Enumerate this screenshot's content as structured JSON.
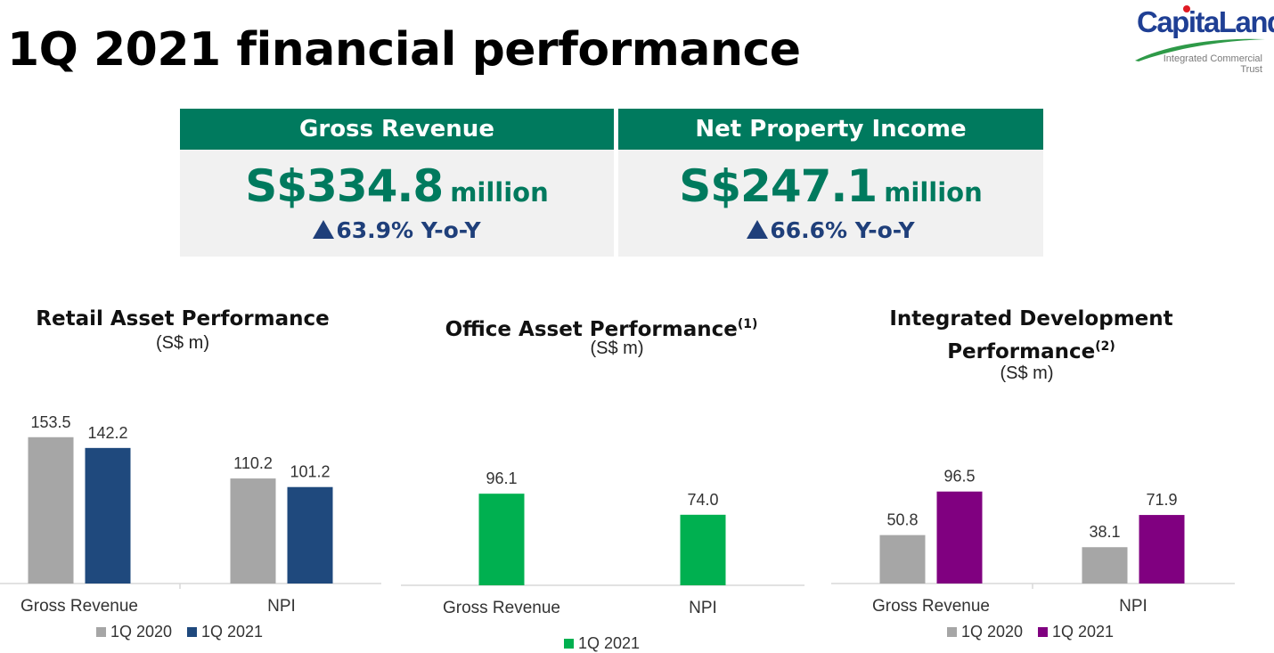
{
  "header": {
    "title": "1Q 2021 financial performance",
    "logo": {
      "name": "CapitaLand",
      "subtitle_line1": "Integrated Commercial",
      "subtitle_line2": "Trust",
      "colors": {
        "name": "#1f3f94",
        "dot": "#e01b24",
        "swoosh": "#2e9a48"
      }
    }
  },
  "kpis": [
    {
      "label": "Gross Revenue",
      "amount": "S$334.8",
      "unit": "million",
      "change": "63.9% Y-o-Y",
      "change_icon": "triangle-up-icon"
    },
    {
      "label": "Net Property Income",
      "amount": "S$247.1",
      "unit": "million",
      "change": "66.6% Y-o-Y",
      "change_icon": "triangle-up-icon"
    }
  ],
  "colors": {
    "kpi_header": "#007a5e",
    "kpi_value": "#007a5e",
    "kpi_change": "#1f3f7a",
    "kpi_background": "#f1f1f1",
    "q2020": "#a6a6a6",
    "q2021_retail": "#1f497d",
    "q2021_office": "#00b050",
    "q2021_integrated": "#800080"
  },
  "chart_data": [
    {
      "type": "bar",
      "title": "Retail Asset Performance",
      "unit_label": "(S$ m)",
      "categories": [
        "Gross Revenue",
        "NPI"
      ],
      "series": [
        {
          "name": "1Q 2020",
          "values": [
            153.5,
            110.2
          ],
          "color": "#a6a6a6"
        },
        {
          "name": "1Q 2021",
          "values": [
            142.2,
            101.2
          ],
          "color": "#1f497d"
        }
      ],
      "legend": "bottom",
      "grid": false
    },
    {
      "type": "bar",
      "title": "Office Asset Performance",
      "title_note": "(1)",
      "unit_label": "(S$ m)",
      "categories": [
        "Gross Revenue",
        "NPI"
      ],
      "series": [
        {
          "name": "1Q 2021",
          "values": [
            96.1,
            74.0
          ],
          "color": "#00b050"
        }
      ],
      "legend": "bottom",
      "grid": false
    },
    {
      "type": "bar",
      "title_line1": "Integrated Development",
      "title_line2": "Performance",
      "title_note": "(2)",
      "unit_label": "(S$ m)",
      "categories": [
        "Gross Revenue",
        "NPI"
      ],
      "series": [
        {
          "name": "1Q 2020",
          "values": [
            50.8,
            38.1
          ],
          "color": "#a6a6a6"
        },
        {
          "name": "1Q 2021",
          "values": [
            96.5,
            71.9
          ],
          "color": "#800080"
        }
      ],
      "legend": "bottom",
      "grid": false
    }
  ]
}
